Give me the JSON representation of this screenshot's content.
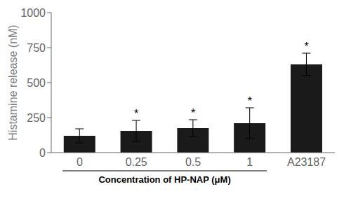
{
  "chart_data": {
    "type": "bar",
    "categories": [
      "0",
      "0.25",
      "0.5",
      "1",
      "A23187"
    ],
    "values": [
      120,
      155,
      175,
      210,
      630
    ],
    "errors": [
      50,
      75,
      60,
      110,
      80
    ],
    "color": "#1a1a1a",
    "ylabel": "Histamine release (nM)",
    "xlabel": "Concentration of HP-NAP (μM)",
    "ylim": [
      0,
      1000
    ],
    "yticks": [
      0,
      250,
      500,
      750,
      1000
    ],
    "grid": false,
    "annotations": [
      {
        "category": "0.25",
        "text": "*"
      },
      {
        "category": "0.5",
        "text": "*"
      },
      {
        "category": "1",
        "text": "*"
      },
      {
        "category": "A23187",
        "text": "*"
      }
    ]
  }
}
